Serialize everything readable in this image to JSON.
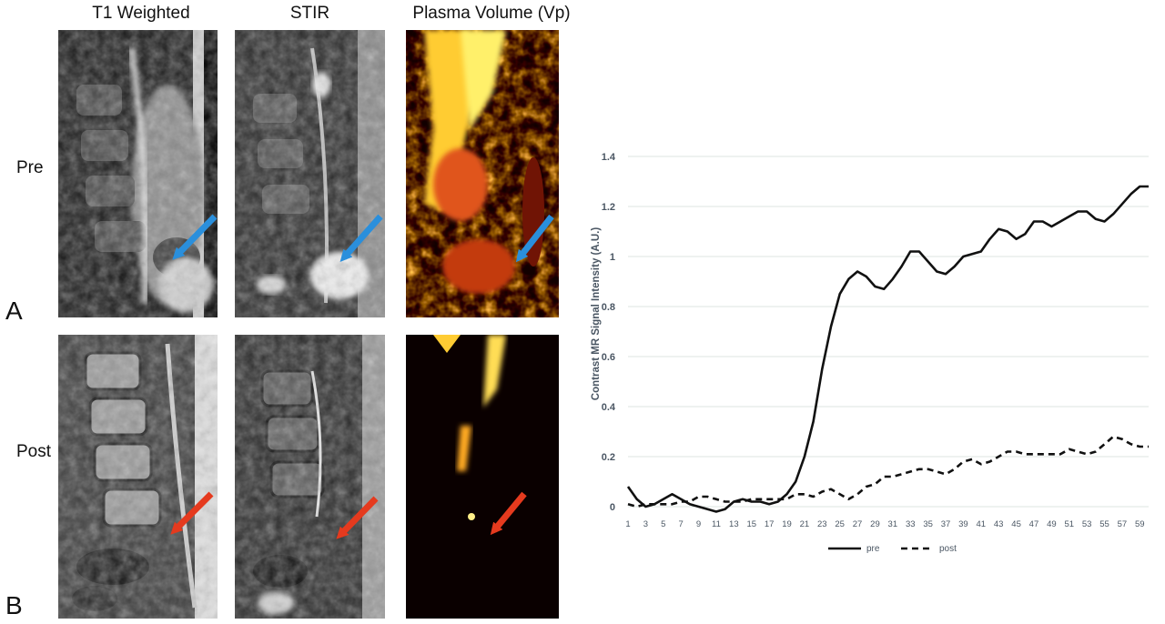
{
  "columns": {
    "t1": "T1 Weighted",
    "stir": "STIR",
    "vp": "Plasma Volume (Vp)"
  },
  "rows": {
    "pre": "Pre",
    "post": "Post"
  },
  "panels": {
    "a": "A",
    "b": "B"
  },
  "colors": {
    "pre_arrow": "#2a8fdc",
    "post_arrow": "#e53a1e",
    "line": "#111111",
    "grid": "#dde6e0",
    "axis_text": "#4a5663"
  },
  "chart_data": {
    "type": "line",
    "ylabel": "Contrast MR Signal Intensity (A.U.)",
    "xlabel": "",
    "ylim": [
      0,
      1.4
    ],
    "yticks": [
      0,
      0.2,
      0.4,
      0.6,
      0.8,
      1,
      1.2,
      1.4
    ],
    "xticks": [
      1,
      3,
      5,
      7,
      9,
      11,
      13,
      15,
      17,
      19,
      21,
      23,
      25,
      27,
      29,
      31,
      33,
      35,
      37,
      39,
      41,
      43,
      45,
      47,
      49,
      51,
      53,
      55,
      57,
      59
    ],
    "x": [
      1,
      2,
      3,
      4,
      5,
      6,
      7,
      8,
      9,
      10,
      11,
      12,
      13,
      14,
      15,
      16,
      17,
      18,
      19,
      20,
      21,
      22,
      23,
      24,
      25,
      26,
      27,
      28,
      29,
      30,
      31,
      32,
      33,
      34,
      35,
      36,
      37,
      38,
      39,
      40,
      41,
      42,
      43,
      44,
      45,
      46,
      47,
      48,
      49,
      50,
      51,
      52,
      53,
      54,
      55,
      56,
      57,
      58,
      59,
      60
    ],
    "grid": true,
    "legend_position": "bottom",
    "series": [
      {
        "name": "pre",
        "style": "solid",
        "values": [
          0.08,
          0.03,
          0.0,
          0.01,
          0.03,
          0.05,
          0.03,
          0.01,
          0.0,
          -0.01,
          -0.02,
          -0.01,
          0.02,
          0.03,
          0.02,
          0.02,
          0.01,
          0.02,
          0.05,
          0.1,
          0.2,
          0.34,
          0.55,
          0.72,
          0.85,
          0.91,
          0.94,
          0.92,
          0.88,
          0.87,
          0.91,
          0.96,
          1.02,
          1.02,
          0.98,
          0.94,
          0.93,
          0.96,
          1.0,
          1.01,
          1.02,
          1.07,
          1.11,
          1.1,
          1.07,
          1.09,
          1.14,
          1.14,
          1.12,
          1.14,
          1.16,
          1.18,
          1.18,
          1.15,
          1.14,
          1.17,
          1.21,
          1.25,
          1.28,
          1.28
        ]
      },
      {
        "name": "post",
        "style": "dashed",
        "values": [
          0.01,
          0.0,
          0.01,
          0.01,
          0.01,
          0.01,
          0.02,
          0.02,
          0.04,
          0.04,
          0.03,
          0.02,
          0.02,
          0.02,
          0.03,
          0.03,
          0.03,
          0.03,
          0.03,
          0.05,
          0.05,
          0.04,
          0.06,
          0.07,
          0.05,
          0.03,
          0.05,
          0.08,
          0.09,
          0.12,
          0.12,
          0.13,
          0.14,
          0.15,
          0.15,
          0.14,
          0.13,
          0.15,
          0.18,
          0.19,
          0.17,
          0.18,
          0.2,
          0.22,
          0.22,
          0.21,
          0.21,
          0.21,
          0.21,
          0.21,
          0.23,
          0.22,
          0.21,
          0.22,
          0.25,
          0.28,
          0.27,
          0.25,
          0.24,
          0.24
        ]
      }
    ]
  }
}
